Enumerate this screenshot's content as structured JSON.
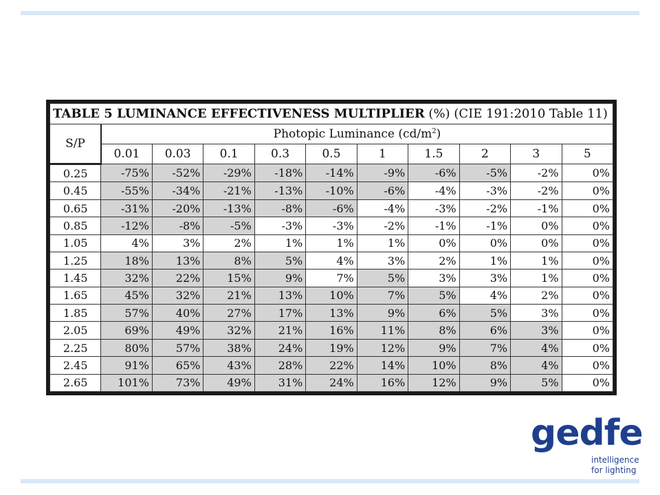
{
  "table": {
    "title_bold": "TABLE 5 LUMINANCE EFFECTIVENESS MULTIPLIER",
    "title_rest": " (%) (CIE 191:2010 Table 11)",
    "sp_label": "S/P",
    "group_label": "Photopic Luminance (cd/m",
    "group_label_sup": "2",
    "group_label_end": ")",
    "columns": [
      "0.01",
      "0.03",
      "0.1",
      "0.3",
      "0.5",
      "1",
      "1.5",
      "2",
      "3",
      "5"
    ],
    "rows": [
      {
        "sp": "0.25",
        "values": [
          "-75%",
          "-52%",
          "-29%",
          "-18%",
          "-14%",
          "-9%",
          "-6%",
          "-5%",
          "-2%",
          "0%"
        ]
      },
      {
        "sp": "0.45",
        "values": [
          "-55%",
          "-34%",
          "-21%",
          "-13%",
          "-10%",
          "-6%",
          "-4%",
          "-3%",
          "-2%",
          "0%"
        ]
      },
      {
        "sp": "0.65",
        "values": [
          "-31%",
          "-20%",
          "-13%",
          "-8%",
          "-6%",
          "-4%",
          "-3%",
          "-2%",
          "-1%",
          "0%"
        ]
      },
      {
        "sp": "0.85",
        "values": [
          "-12%",
          "-8%",
          "-5%",
          "-3%",
          "-3%",
          "-2%",
          "-1%",
          "-1%",
          "0%",
          "0%"
        ]
      },
      {
        "sp": "1.05",
        "values": [
          "4%",
          "3%",
          "2%",
          "1%",
          "1%",
          "1%",
          "0%",
          "0%",
          "0%",
          "0%"
        ]
      },
      {
        "sp": "1.25",
        "values": [
          "18%",
          "13%",
          "8%",
          "5%",
          "4%",
          "3%",
          "2%",
          "1%",
          "1%",
          "0%"
        ]
      },
      {
        "sp": "1.45",
        "values": [
          "32%",
          "22%",
          "15%",
          "9%",
          "7%",
          "5%",
          "3%",
          "3%",
          "1%",
          "0%"
        ]
      },
      {
        "sp": "1.65",
        "values": [
          "45%",
          "32%",
          "21%",
          "13%",
          "10%",
          "7%",
          "5%",
          "4%",
          "2%",
          "0%"
        ]
      },
      {
        "sp": "1.85",
        "values": [
          "57%",
          "40%",
          "27%",
          "17%",
          "13%",
          "9%",
          "6%",
          "5%",
          "3%",
          "0%"
        ]
      },
      {
        "sp": "2.05",
        "values": [
          "69%",
          "49%",
          "32%",
          "21%",
          "16%",
          "11%",
          "8%",
          "6%",
          "3%",
          "0%"
        ]
      },
      {
        "sp": "2.25",
        "values": [
          "80%",
          "57%",
          "38%",
          "24%",
          "19%",
          "12%",
          "9%",
          "7%",
          "4%",
          "0%"
        ]
      },
      {
        "sp": "2.45",
        "values": [
          "91%",
          "65%",
          "43%",
          "28%",
          "22%",
          "14%",
          "10%",
          "8%",
          "4%",
          "0%"
        ]
      },
      {
        "sp": "2.65",
        "values": [
          "101%",
          "73%",
          "49%",
          "31%",
          "24%",
          "16%",
          "12%",
          "9%",
          "5%",
          "0%"
        ]
      }
    ]
  },
  "logo": {
    "word": "gedfe",
    "tagline_1": "intelligence",
    "tagline_2": "for lighting",
    "color": "#1f3f8e"
  },
  "colors": {
    "shade": "#d4d4d4",
    "rule": "#d7e8f8"
  }
}
